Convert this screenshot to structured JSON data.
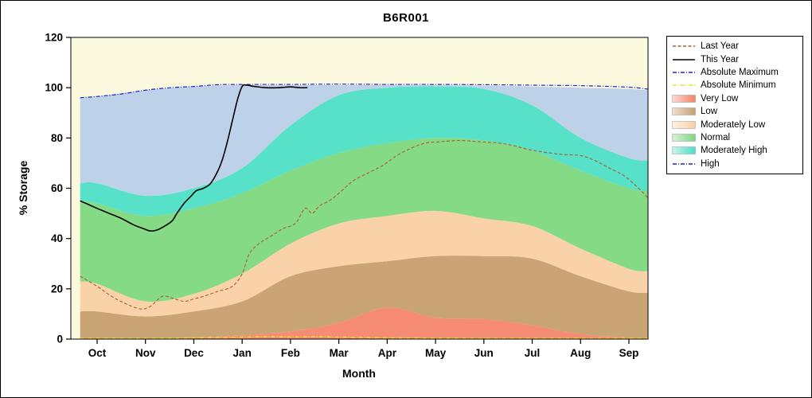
{
  "window": {
    "title": "B6R001"
  },
  "axes": {
    "x_label": "Month",
    "y_label": "% Storage",
    "y_ticks": [
      0,
      20,
      40,
      60,
      80,
      100,
      120
    ],
    "x_tick_labels": [
      "Oct",
      "Nov",
      "Dec",
      "Jan",
      "Feb",
      "Mar",
      "Apr",
      "May",
      "Jun",
      "Jul",
      "Aug",
      "Sep"
    ]
  },
  "colors": {
    "plot_bg": "#fbfadf",
    "very_low": "#f5836a",
    "low": "#c59e6e",
    "moderately_low": "#facfa5",
    "normal": "#7cd77f",
    "moderately_high": "#4adfc6",
    "high": "#b8cfe9",
    "last_year": "#b25b28",
    "this_year": "#000000",
    "absolute_maximum": "#2222cc",
    "absolute_minimum": "#e3e32a"
  },
  "legend": {
    "items": [
      {
        "label": "Last Year",
        "swatch": "line",
        "color": "#b25b28",
        "dash": "4 2.5"
      },
      {
        "label": "This Year",
        "swatch": "line",
        "color": "#000000",
        "dash": ""
      },
      {
        "label": "Absolute Maximum",
        "swatch": "line",
        "color": "#2222cc",
        "dash": "5 2 1 2"
      },
      {
        "label": "Absolute Minimum",
        "swatch": "line",
        "color": "#e3e32a",
        "dash": "5 2 1 2"
      },
      {
        "label": "Very Low",
        "swatch": "fill",
        "color": "#f5836a"
      },
      {
        "label": "Low",
        "swatch": "fill",
        "color": "#c59e6e"
      },
      {
        "label": "Moderately Low",
        "swatch": "fill",
        "color": "#facfa5"
      },
      {
        "label": "Normal",
        "swatch": "fill",
        "color": "#7cd77f"
      },
      {
        "label": "Moderately High",
        "swatch": "fill",
        "color": "#4adfc6"
      },
      {
        "label": "High",
        "swatch": "line",
        "color": "#2222cc",
        "dash": "5 2 1 2"
      }
    ]
  },
  "chart_data": {
    "type": "area",
    "title": "B6R001",
    "xlabel": "Month",
    "ylabel": "% Storage",
    "ylim": [
      0,
      120
    ],
    "grid": false,
    "legend_position": "right",
    "x_categories": [
      "Oct",
      "Nov",
      "Dec",
      "Jan",
      "Feb",
      "Mar",
      "Apr",
      "May",
      "Jun",
      "Jul",
      "Aug",
      "Sep"
    ],
    "band_x": [
      -0.35,
      0,
      1,
      2,
      3,
      4,
      5,
      6,
      7,
      8,
      9,
      10,
      11,
      11.4
    ],
    "bands": [
      {
        "name": "Very Low",
        "color": "#f5836a",
        "top": [
          0.6,
          0.6,
          0.5,
          0.6,
          1.5,
          3,
          6.5,
          12.5,
          8.5,
          8,
          5.5,
          2,
          0.6,
          0.5
        ]
      },
      {
        "name": "Low",
        "color": "#c59e6e",
        "top": [
          11,
          11,
          9,
          11,
          15,
          25,
          29,
          31,
          33,
          33,
          32,
          25,
          19,
          18.5
        ]
      },
      {
        "name": "Moderately Low",
        "color": "#facfa5",
        "top": [
          23,
          22,
          15,
          18,
          26,
          38,
          46,
          49,
          51,
          48,
          45,
          36,
          28,
          27
        ]
      },
      {
        "name": "Normal",
        "color": "#7cd77f",
        "top": [
          55,
          54,
          49,
          52,
          58,
          67,
          74,
          78,
          80,
          79,
          75,
          67,
          60,
          59
        ]
      },
      {
        "name": "Moderately High",
        "color": "#4adfc6",
        "top": [
          62,
          62,
          57,
          60,
          68,
          85,
          97,
          100,
          100.5,
          99.5,
          93,
          80,
          72,
          71
        ]
      },
      {
        "name": "High",
        "color": "#b8cfe9",
        "top": [
          96,
          96.5,
          99,
          100.5,
          101,
          101,
          101,
          101,
          101,
          100.8,
          100.5,
          100,
          99.5,
          99
        ]
      }
    ],
    "lines": [
      {
        "name": "Absolute Minimum",
        "color": "#e3e32a",
        "dash": "5 2 1 2",
        "width": 1.4,
        "x": [
          -0.35,
          1,
          2,
          3,
          3.5,
          4,
          4.5,
          5,
          6,
          7,
          8,
          9,
          10,
          11,
          11.4
        ],
        "y": [
          0.3,
          0.3,
          0.5,
          0.8,
          1,
          0.9,
          1,
          0.8,
          0.5,
          0.4,
          0.3,
          0.3,
          0.3,
          0.3,
          0.3
        ]
      },
      {
        "name": "Absolute Maximum",
        "color": "#2222cc",
        "dash": "5 2 1 2",
        "width": 1.2,
        "x": [
          -0.35,
          0,
          0.5,
          1,
          1.5,
          2,
          2.5,
          3,
          4,
          5,
          6,
          7,
          8,
          9,
          10,
          11,
          11.4
        ],
        "y": [
          96,
          96.5,
          97.5,
          99,
          100,
          100.5,
          101.2,
          101.3,
          101.3,
          101.4,
          101.3,
          101.3,
          101.2,
          101,
          100.8,
          100.2,
          99.4
        ]
      },
      {
        "name": "Last Year",
        "color": "#b25b28",
        "dash": "4 2.5",
        "width": 1.1,
        "x": [
          -0.35,
          0,
          0.3,
          0.6,
          0.9,
          1.1,
          1.35,
          1.6,
          1.8,
          2,
          2.2,
          2.5,
          2.8,
          3,
          3.15,
          3.35,
          3.6,
          3.85,
          4.1,
          4.3,
          4.45,
          4.6,
          4.8,
          5,
          5.3,
          5.6,
          5.9,
          6.2,
          6.5,
          6.8,
          7.1,
          7.5,
          7.9,
          8.3,
          8.6,
          8.9,
          9.2,
          9.6,
          10,
          10.3,
          10.6,
          10.9,
          11.2,
          11.4
        ],
        "y": [
          25,
          21,
          17,
          14,
          12,
          13,
          17,
          16,
          15,
          16,
          17,
          19,
          21,
          26,
          34,
          38,
          41,
          44,
          46,
          52,
          50,
          53,
          55,
          58,
          63,
          66,
          69,
          73,
          76,
          78,
          78.5,
          79,
          78.5,
          78,
          77,
          75.5,
          74.5,
          73.5,
          73,
          71,
          68,
          65,
          60,
          56
        ]
      },
      {
        "name": "This Year",
        "color": "#000000",
        "dash": "",
        "width": 1.6,
        "x": [
          -0.35,
          0,
          0.25,
          0.5,
          0.75,
          0.95,
          1.1,
          1.25,
          1.4,
          1.55,
          1.65,
          1.8,
          1.95,
          2.05,
          2.2,
          2.35,
          2.5,
          2.6,
          2.7,
          2.8,
          2.9,
          3,
          3.1,
          3.25,
          3.5,
          3.75,
          4,
          4.2,
          4.35
        ],
        "y": [
          55,
          52,
          50,
          48,
          45.5,
          44,
          43,
          43.5,
          45,
          47,
          50,
          54,
          57,
          59,
          60,
          62,
          67,
          72,
          79,
          87,
          95,
          100.5,
          101,
          100.5,
          100,
          100,
          100.3,
          100,
          100
        ]
      }
    ]
  }
}
